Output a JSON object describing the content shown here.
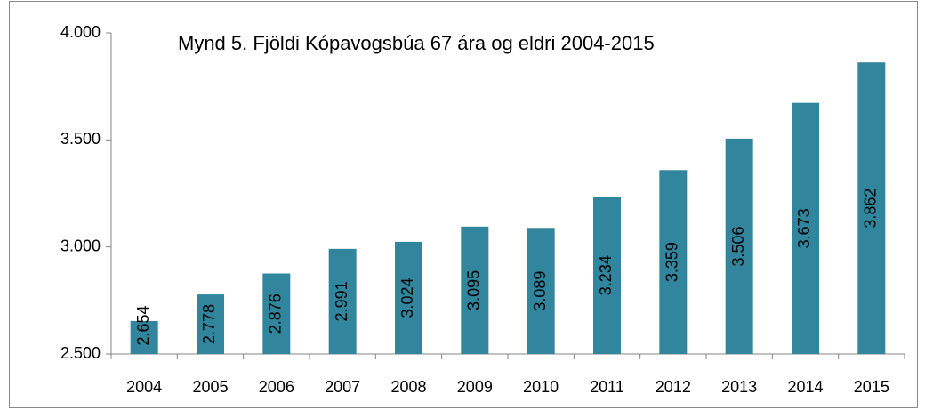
{
  "chart_data": {
    "type": "bar",
    "title": "Mynd 5. Fjöldi Kópavogsbúa 67 ára og eldri 2004-2015",
    "categories": [
      "2004",
      "2005",
      "2006",
      "2007",
      "2008",
      "2009",
      "2010",
      "2011",
      "2012",
      "2013",
      "2014",
      "2015"
    ],
    "values": [
      2654,
      2778,
      2876,
      2991,
      3024,
      3095,
      3089,
      3234,
      3359,
      3506,
      3673,
      3862
    ],
    "value_labels": [
      "2.654",
      "2.778",
      "2.876",
      "2.991",
      "3.024",
      "3.095",
      "3.089",
      "3.234",
      "3.359",
      "3.506",
      "3.673",
      "3.862"
    ],
    "color": "#31859c",
    "ylim": [
      2500,
      4000
    ],
    "yticks": [
      {
        "value": 2500,
        "label": "2.500"
      },
      {
        "value": 3000,
        "label": "3.000"
      },
      {
        "value": 3500,
        "label": "3.500"
      },
      {
        "value": 4000,
        "label": "4.000"
      }
    ],
    "grid": false
  }
}
